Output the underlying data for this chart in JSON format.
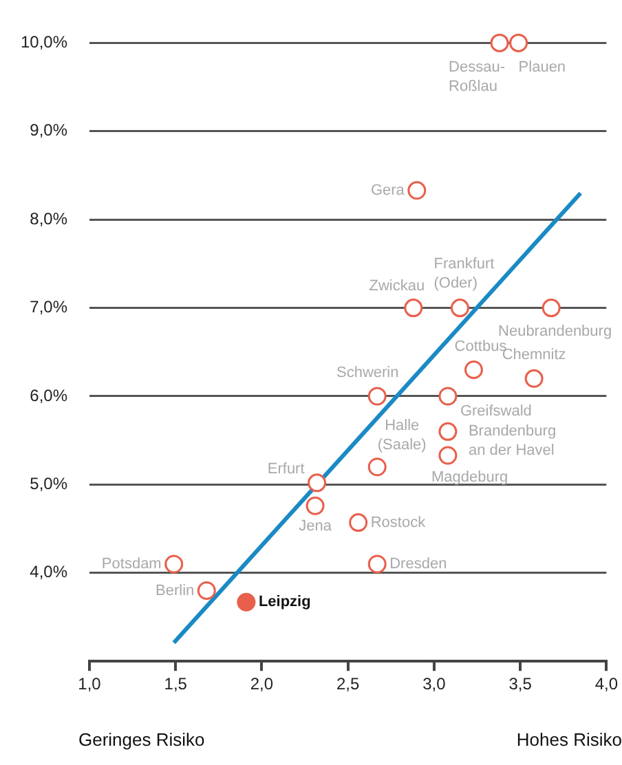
{
  "chart_data": {
    "type": "scatter",
    "xlim": [
      1,
      4
    ],
    "xticks": [
      {
        "value": 1,
        "label": "1,0"
      },
      {
        "value": 1.5,
        "label": "1,5"
      },
      {
        "value": 2,
        "label": "2,0"
      },
      {
        "value": 2.5,
        "label": "2,5"
      },
      {
        "value": 3,
        "label": "3,0"
      },
      {
        "value": 3.5,
        "label": "3,5"
      },
      {
        "value": 4,
        "label": "4,0"
      }
    ],
    "ylim": [
      3,
      10
    ],
    "yticks": [
      {
        "value": 4,
        "label": "4,0%"
      },
      {
        "value": 5,
        "label": "5,0%"
      },
      {
        "value": 6,
        "label": "6,0%"
      },
      {
        "value": 7,
        "label": "7,0%"
      },
      {
        "value": 8,
        "label": "8,0%"
      },
      {
        "value": 9,
        "label": "9,0%"
      },
      {
        "value": 10,
        "label": "10,0%"
      }
    ],
    "grid": "y",
    "legend": false,
    "series": [
      {
        "marker": "circle",
        "color": "#e8604c",
        "x": [
          3.38,
          3.49,
          2.9,
          2.88,
          3.15,
          3.68,
          3.23,
          3.58,
          2.67,
          3.08,
          3.08,
          3.08,
          2.67,
          2.32,
          2.31,
          2.56,
          2.67,
          1.49,
          1.68
        ],
        "values": [
          10.0,
          10.0,
          8.33,
          7.0,
          7.0,
          7.0,
          6.3,
          6.2,
          6.0,
          6.0,
          5.6,
          5.33,
          5.2,
          5.02,
          4.76,
          4.57,
          4.1,
          4.1,
          3.8
        ]
      },
      {
        "marker": "circle",
        "color": "#e8604c",
        "x": [
          1.91
        ],
        "values": [
          3.67
        ]
      },
      {
        "type": "line",
        "color": "#1b8ac4",
        "x": [
          1.49,
          3.85
        ],
        "values": [
          3.21,
          8.3
        ]
      }
    ],
    "annotations": [
      {
        "text": "Dessau-\nRoßlau",
        "x": 3.38,
        "y": 10.0
      },
      {
        "text": "Plauen",
        "x": 3.49,
        "y": 10.0
      },
      {
        "text": "Gera",
        "x": 2.9,
        "y": 8.33
      },
      {
        "text": "Zwickau",
        "x": 2.88,
        "y": 7.0
      },
      {
        "text": "Frankfurt\n(Oder)",
        "x": 3.15,
        "y": 7.0
      },
      {
        "text": "Neubrandenburg",
        "x": 3.68,
        "y": 7.0
      },
      {
        "text": "Cottbus",
        "x": 3.23,
        "y": 6.3
      },
      {
        "text": "Chemnitz",
        "x": 3.58,
        "y": 6.2
      },
      {
        "text": "Schwerin",
        "x": 2.67,
        "y": 6.0
      },
      {
        "text": "Greifswald",
        "x": 3.08,
        "y": 6.0
      },
      {
        "text": "Brandenburg\nan der Havel",
        "x": 3.08,
        "y": 5.6
      },
      {
        "text": "Magdeburg",
        "x": 3.08,
        "y": 5.33
      },
      {
        "text": "Halle\n(Saale)",
        "x": 2.67,
        "y": 5.2
      },
      {
        "text": "Erfurt",
        "x": 2.32,
        "y": 5.02
      },
      {
        "text": "Jena",
        "x": 2.31,
        "y": 4.76
      },
      {
        "text": "Rostock",
        "x": 2.56,
        "y": 4.57
      },
      {
        "text": "Dresden",
        "x": 2.67,
        "y": 4.1
      },
      {
        "text": "Potsdam",
        "x": 1.49,
        "y": 4.1
      },
      {
        "text": "Berlin",
        "x": 1.68,
        "y": 3.8
      },
      {
        "text": "Leipzig",
        "x": 1.91,
        "y": 3.67
      },
      "Geringes Risiko",
      "Hohes Risiko"
    ]
  }
}
